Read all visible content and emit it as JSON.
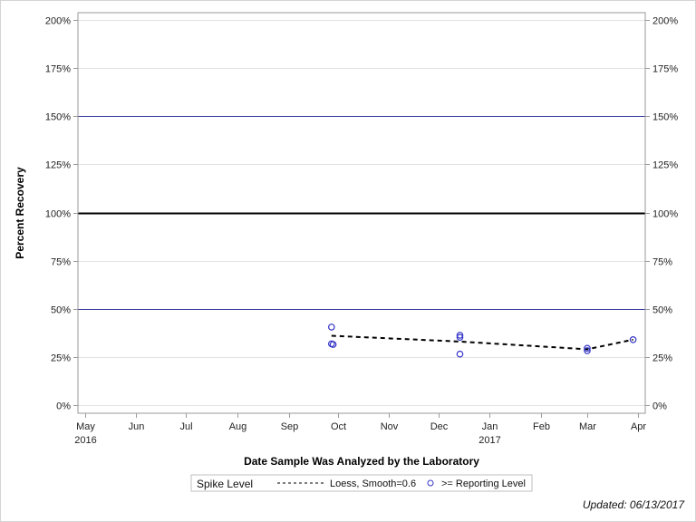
{
  "footer": {
    "updated": "Updated: 06/13/2017"
  },
  "colors": {
    "limit_line": "#3a3fa0",
    "target_line": "#000000",
    "grid": "#e2e2e2",
    "frame": "#9a9a9a",
    "marker": "#3535c8",
    "loess": "#000000"
  },
  "chart_data": {
    "type": "scatter",
    "title": "",
    "xlabel": "Date Sample Was Analyzed by the Laboratory",
    "ylabel": "Percent Recovery",
    "ylim": [
      0,
      200
    ],
    "y_ticks": [
      "0%",
      "25%",
      "50%",
      "75%",
      "100%",
      "125%",
      "150%",
      "175%",
      "200%"
    ],
    "y_tick_values": [
      0,
      25,
      50,
      75,
      100,
      125,
      150,
      175,
      200
    ],
    "x_ticks": [
      {
        "label": "May",
        "sub": "2016",
        "month": 0
      },
      {
        "label": "Jun",
        "sub": "",
        "month": 1
      },
      {
        "label": "Jul",
        "sub": "",
        "month": 2
      },
      {
        "label": "Aug",
        "sub": "",
        "month": 3
      },
      {
        "label": "Sep",
        "sub": "",
        "month": 4
      },
      {
        "label": "Oct",
        "sub": "",
        "month": 5
      },
      {
        "label": "Nov",
        "sub": "",
        "month": 6
      },
      {
        "label": "Dec",
        "sub": "",
        "month": 7
      },
      {
        "label": "Jan",
        "sub": "2017",
        "month": 8
      },
      {
        "label": "Feb",
        "sub": "",
        "month": 9
      },
      {
        "label": "Mar",
        "sub": "",
        "month": 10
      },
      {
        "label": "Apr",
        "sub": "",
        "month": 11
      }
    ],
    "reference_lines": [
      {
        "value": 150,
        "style": "control-limit",
        "color": "#3a3fa0"
      },
      {
        "value": 100,
        "style": "target",
        "color": "#000000"
      },
      {
        "value": 50,
        "style": "control-limit",
        "color": "#3a3fa0"
      }
    ],
    "grid": true,
    "legend": {
      "title": "Spike Level",
      "position": "bottom",
      "entries": [
        {
          "label": "Loess, Smooth=0.6",
          "symbol": "dashed-line"
        },
        {
          "label": ">= Reporting Level",
          "symbol": "open-circle"
        }
      ]
    },
    "series": [
      {
        "name": ">= Reporting Level",
        "type": "scatter",
        "points": [
          {
            "x": "2016-09-27",
            "y": 40.5
          },
          {
            "x": "2016-09-27",
            "y": 31.8
          },
          {
            "x": "2016-09-28",
            "y": 31.5
          },
          {
            "x": "2016-12-14",
            "y": 36.3
          },
          {
            "x": "2016-12-14",
            "y": 35.2
          },
          {
            "x": "2016-12-14",
            "y": 26.5
          },
          {
            "x": "2017-03-01",
            "y": 29.5
          },
          {
            "x": "2017-03-01",
            "y": 28.3
          },
          {
            "x": "2017-03-29",
            "y": 34.0
          }
        ]
      },
      {
        "name": "Loess, Smooth=0.6",
        "type": "line",
        "points": [
          {
            "x": "2016-09-27",
            "y": 36.0
          },
          {
            "x": "2016-12-14",
            "y": 33.0
          },
          {
            "x": "2017-03-01",
            "y": 29.0
          },
          {
            "x": "2017-03-29",
            "y": 34.0
          }
        ]
      }
    ]
  }
}
